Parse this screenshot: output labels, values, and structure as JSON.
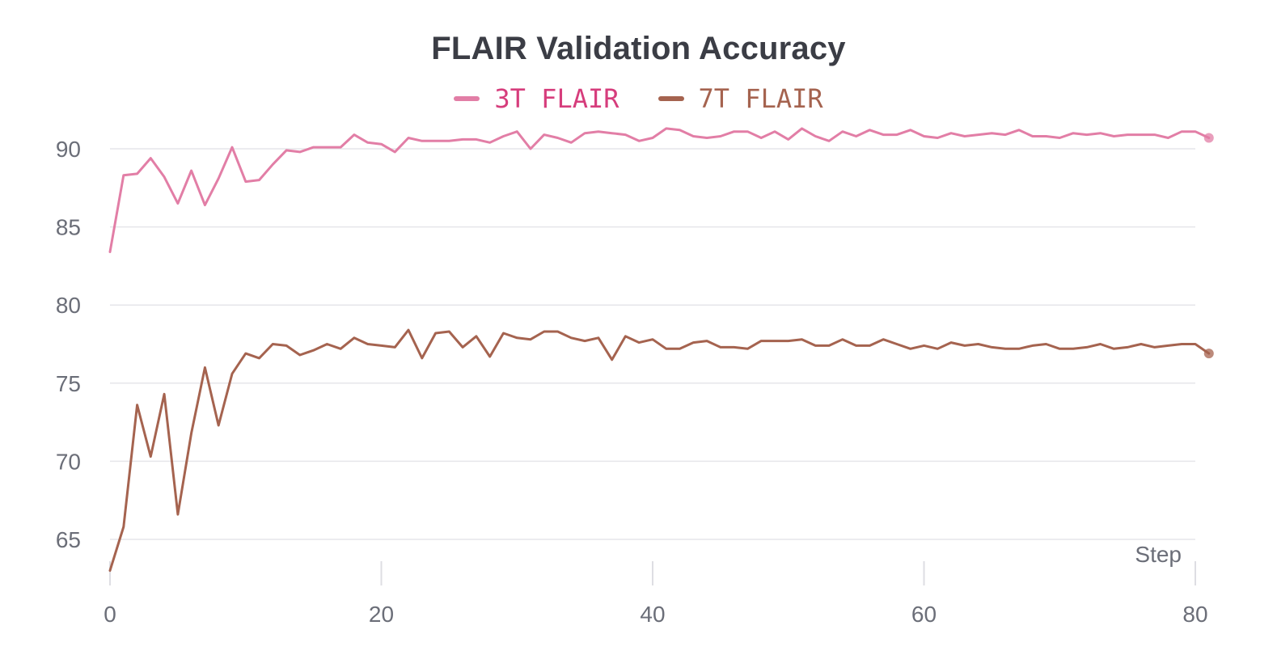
{
  "chart_data": {
    "type": "line",
    "title": "FLAIR Validation Accuracy",
    "xlabel": "Step",
    "ylabel": "",
    "xlim": [
      0,
      81
    ],
    "ylim": [
      63,
      91
    ],
    "x_ticks": [
      "0",
      "20",
      "40",
      "60",
      "80"
    ],
    "y_ticks": [
      "65",
      "70",
      "75",
      "80",
      "85",
      "90"
    ],
    "grid": "horizontal",
    "legend_position": "top-center",
    "series": [
      {
        "name": "3T FLAIR",
        "color": "#e27ea6",
        "text_color": "#d63d7c",
        "values": [
          83.4,
          88.3,
          88.4,
          89.4,
          88.2,
          86.5,
          88.6,
          86.4,
          88.1,
          90.1,
          87.9,
          88.0,
          89.0,
          89.9,
          89.8,
          90.1,
          90.1,
          90.1,
          90.9,
          90.4,
          90.3,
          89.8,
          90.7,
          90.5,
          90.5,
          90.5,
          90.6,
          90.6,
          90.4,
          90.8,
          91.1,
          90.0,
          90.9,
          90.7,
          90.4,
          91.0,
          91.1,
          91.0,
          90.9,
          90.5,
          90.7,
          91.3,
          91.2,
          90.8,
          90.7,
          90.8,
          91.1,
          91.1,
          90.7,
          91.1,
          90.6,
          91.3,
          90.8,
          90.5,
          91.1,
          90.8,
          91.2,
          90.9,
          90.9,
          91.2,
          90.8,
          90.7,
          91.0,
          90.8,
          90.9,
          91.0,
          90.9,
          91.2,
          90.8,
          90.8,
          90.7,
          91.0,
          90.9,
          91.0,
          90.8,
          90.9,
          90.9,
          90.9,
          90.7,
          91.1,
          91.1,
          90.7
        ]
      },
      {
        "name": "7T FLAIR",
        "color": "#a5634f",
        "text_color": "#a5634f",
        "values": [
          63.0,
          65.8,
          73.6,
          70.3,
          74.3,
          66.6,
          71.8,
          76.0,
          72.3,
          75.6,
          76.9,
          76.6,
          77.5,
          77.4,
          76.8,
          77.1,
          77.5,
          77.2,
          77.9,
          77.5,
          77.4,
          77.3,
          78.4,
          76.6,
          78.2,
          78.3,
          77.3,
          78.0,
          76.7,
          78.2,
          77.9,
          77.8,
          78.3,
          78.3,
          77.9,
          77.7,
          77.9,
          76.5,
          78.0,
          77.6,
          77.8,
          77.2,
          77.2,
          77.6,
          77.7,
          77.3,
          77.3,
          77.2,
          77.7,
          77.7,
          77.7,
          77.8,
          77.4,
          77.4,
          77.8,
          77.4,
          77.4,
          77.8,
          77.5,
          77.2,
          77.4,
          77.2,
          77.6,
          77.4,
          77.5,
          77.3,
          77.2,
          77.2,
          77.4,
          77.5,
          77.2,
          77.2,
          77.3,
          77.5,
          77.2,
          77.3,
          77.5,
          77.3,
          77.4,
          77.5,
          77.5,
          76.9
        ]
      }
    ]
  }
}
